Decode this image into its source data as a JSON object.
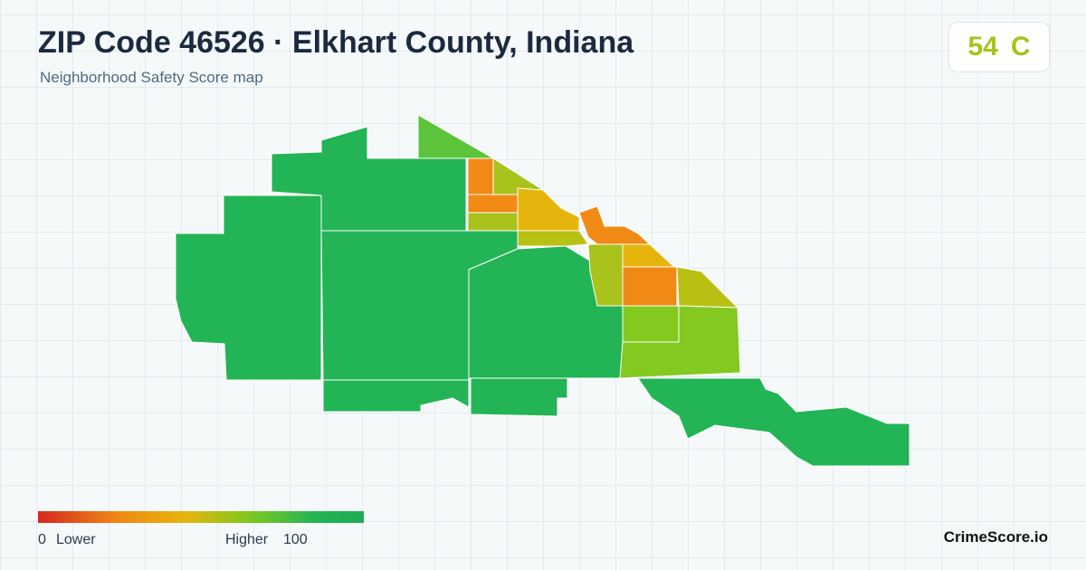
{
  "header": {
    "title": "ZIP Code 46526 · Elkhart County, Indiana",
    "subtitle": "Neighborhood Safety Score map"
  },
  "score": {
    "value": "54",
    "grade": "C"
  },
  "legend": {
    "min": "0",
    "min_label": "Lower",
    "max_label": "Higher",
    "max": "100"
  },
  "brand": "CrimeScore.io"
}
